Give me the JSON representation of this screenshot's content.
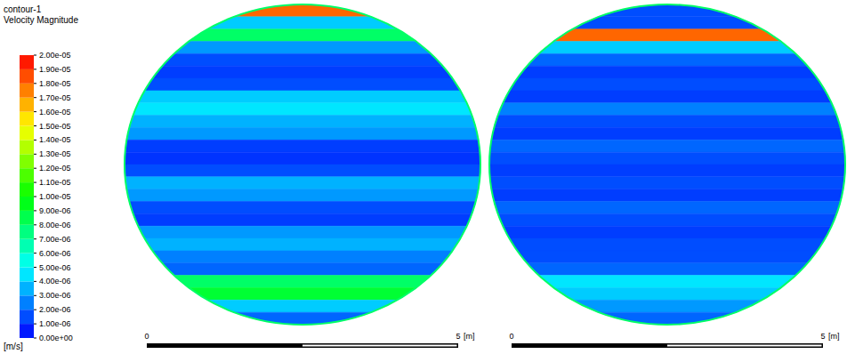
{
  "chart_data": {
    "type": "contour",
    "title": "contour-1",
    "subtitle": "Velocity Magnitude",
    "unit": "[m/s]",
    "colorbar": {
      "range": [
        0,
        2e-05
      ],
      "ticks": [
        {
          "value": 2e-05,
          "label": "2.00e-05"
        },
        {
          "value": 1.9e-05,
          "label": "1.90e-05"
        },
        {
          "value": 1.8e-05,
          "label": "1.80e-05"
        },
        {
          "value": 1.7e-05,
          "label": "1.70e-05"
        },
        {
          "value": 1.6e-05,
          "label": "1.60e-05"
        },
        {
          "value": 1.5e-05,
          "label": "1.50e-05"
        },
        {
          "value": 1.4e-05,
          "label": "1.40e-05"
        },
        {
          "value": 1.3e-05,
          "label": "1.30e-05"
        },
        {
          "value": 1.2e-05,
          "label": "1.20e-05"
        },
        {
          "value": 1.1e-05,
          "label": "1.10e-05"
        },
        {
          "value": 1e-05,
          "label": "1.00e-05"
        },
        {
          "value": 9e-06,
          "label": "9.00e-06"
        },
        {
          "value": 8e-06,
          "label": "8.00e-06"
        },
        {
          "value": 7e-06,
          "label": "7.00e-06"
        },
        {
          "value": 6e-06,
          "label": "6.00e-06"
        },
        {
          "value": 5e-06,
          "label": "5.00e-06"
        },
        {
          "value": 4e-06,
          "label": "4.00e-06"
        },
        {
          "value": 3e-06,
          "label": "3.00e-06"
        },
        {
          "value": 2e-06,
          "label": "2.00e-06"
        },
        {
          "value": 1e-06,
          "label": "1.00e-06"
        },
        {
          "value": 0,
          "label": "0.00e+00"
        }
      ]
    },
    "panels": [
      {
        "wall_value": 8e-06,
        "bands": [
          1.8e-05,
          4e-06,
          8e-06,
          3e-06,
          1.5e-06,
          1.2e-06,
          1.5e-06,
          4e-06,
          4.5e-06,
          3.5e-06,
          3e-06,
          1.2e-06,
          1e-06,
          1.5e-06,
          3.5e-06,
          3e-06,
          1.5e-06,
          1.2e-06,
          3e-06,
          3.5e-06,
          2.5e-06,
          2e-06,
          8e-06,
          9e-06,
          4e-06,
          2e-06
        ]
      },
      {
        "wall_value": 8e-06,
        "bands": [
          1.5e-06,
          1.5e-06,
          1.8e-05,
          4e-06,
          2e-06,
          1.2e-06,
          1.5e-06,
          1.2e-06,
          2.5e-06,
          1.5e-06,
          1.2e-06,
          2e-06,
          1.5e-06,
          1.2e-06,
          1.5e-06,
          1.2e-06,
          2e-06,
          1.5e-06,
          1.2e-06,
          1.5e-06,
          1.5e-06,
          2e-06,
          4.5e-06,
          4e-06,
          3e-06,
          2e-06
        ]
      }
    ],
    "scale_bar": {
      "range": [
        0,
        5
      ],
      "ticks": [
        0,
        5
      ],
      "unit": "[m]"
    }
  }
}
